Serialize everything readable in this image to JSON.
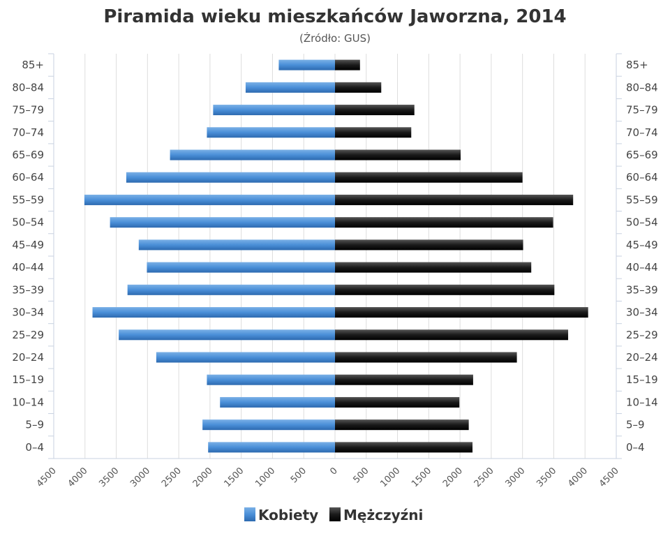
{
  "chart_data": {
    "type": "bar",
    "orientation": "horizontal",
    "layout": "population-pyramid",
    "title": "Piramida wieku mieszkańców Jaworzna, 2014",
    "subtitle": "(Źródło: GUS)",
    "categories": [
      "85+",
      "80–84",
      "75–79",
      "70–74",
      "65–69",
      "60–64",
      "55–59",
      "50–54",
      "45–49",
      "40–44",
      "35–39",
      "30–34",
      "25–29",
      "20–24",
      "15–19",
      "10–14",
      "5–9",
      "0–4"
    ],
    "series": [
      {
        "name": "Kobiety",
        "color": "#4a8fd8",
        "side": "left",
        "values": [
          900,
          1430,
          1950,
          2050,
          2640,
          3340,
          4010,
          3600,
          3140,
          3010,
          3320,
          3880,
          3460,
          2860,
          2050,
          1840,
          2120,
          2030
        ]
      },
      {
        "name": "Mężczyźni",
        "color": "#1a1a1a",
        "side": "right",
        "values": [
          400,
          740,
          1270,
          1220,
          2010,
          3000,
          3810,
          3490,
          3010,
          3140,
          3510,
          4050,
          3730,
          2910,
          2210,
          1990,
          2140,
          2200
        ]
      }
    ],
    "x_ticks_left": [
      "4500",
      "4000",
      "3500",
      "3000",
      "2500",
      "2000",
      "1500",
      "1000",
      "500",
      "0"
    ],
    "x_ticks_right": [
      "500",
      "1000",
      "1500",
      "2000",
      "2500",
      "3000",
      "3500",
      "4000",
      "4500"
    ],
    "xlim": [
      -4500,
      4500
    ],
    "grid": true,
    "legend": "bottom-center"
  }
}
